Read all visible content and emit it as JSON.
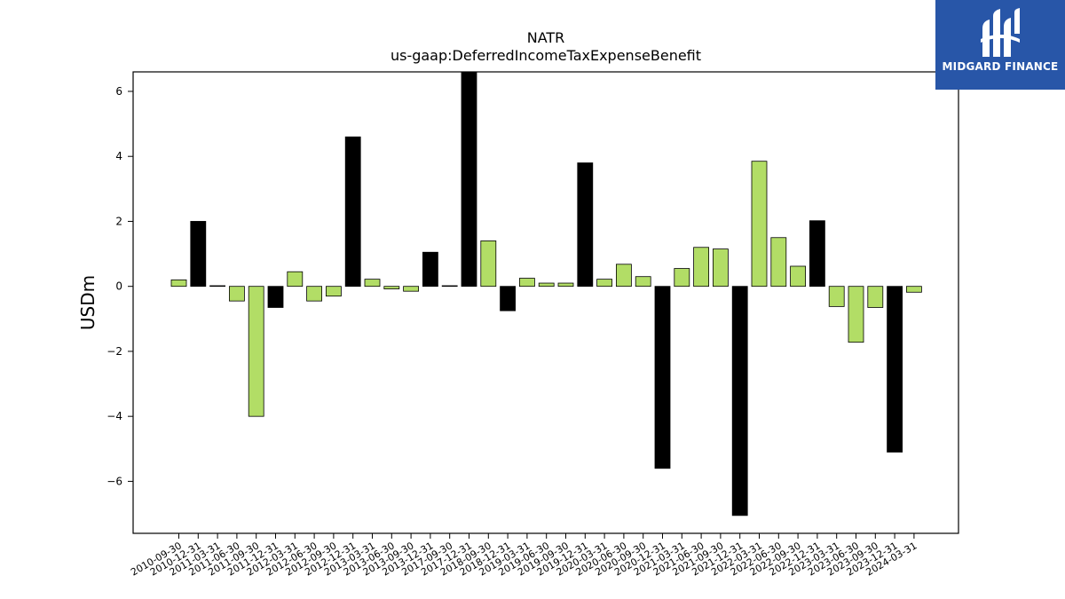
{
  "chart_data": {
    "type": "bar",
    "title": "NATR",
    "subtitle": "us-gaap:DeferredIncomeTaxExpenseBenefit",
    "xlabel": "",
    "ylabel": "USDm",
    "ylim": [
      -7.6,
      6.6
    ],
    "yticks": [
      -6,
      -4,
      -2,
      0,
      2,
      4,
      6
    ],
    "ytick_labels": [
      "−6",
      "−4",
      "−2",
      "0",
      "2",
      "4",
      "6"
    ],
    "grid": false,
    "categories": [
      "2010-09-30",
      "2010-12-31",
      "2011-03-31",
      "2011-06-30",
      "2011-09-30",
      "2011-12-31",
      "2012-03-31",
      "2012-06-30",
      "2012-09-30",
      "2012-12-31",
      "2013-03-31",
      "2013-06-30",
      "2013-09-30",
      "2013-12-31",
      "2017-09-30",
      "2017-12-31",
      "2018-09-30",
      "2018-12-31",
      "2019-03-31",
      "2019-06-30",
      "2019-09-30",
      "2019-12-31",
      "2020-03-31",
      "2020-06-30",
      "2020-09-30",
      "2020-12-31",
      "2021-03-31",
      "2021-06-30",
      "2021-09-30",
      "2021-12-31",
      "2022-03-31",
      "2022-06-30",
      "2022-09-30",
      "2022-12-31",
      "2023-03-31",
      "2023-06-30",
      "2023-09-30",
      "2023-12-31",
      "2024-03-31"
    ],
    "values": [
      0.2,
      2.0,
      0.02,
      -0.45,
      -4.0,
      -0.65,
      0.45,
      -0.45,
      -0.3,
      4.6,
      0.22,
      -0.08,
      -0.15,
      1.05,
      0.02,
      6.6,
      1.4,
      -0.75,
      0.25,
      0.1,
      0.1,
      3.8,
      0.22,
      0.68,
      0.3,
      -5.6,
      0.55,
      1.2,
      1.15,
      -7.05,
      3.85,
      1.5,
      0.62,
      2.02,
      -0.62,
      -1.72,
      -0.65,
      -5.1,
      -0.18
    ],
    "fourth_quarter": [
      false,
      true,
      true,
      false,
      false,
      true,
      false,
      false,
      false,
      true,
      false,
      false,
      false,
      true,
      false,
      true,
      false,
      true,
      false,
      false,
      false,
      true,
      false,
      false,
      false,
      true,
      false,
      false,
      false,
      true,
      false,
      false,
      false,
      true,
      false,
      false,
      false,
      true,
      false
    ],
    "colors": {
      "quarter": "#b2dd66",
      "fourth_quarter": "#000000",
      "edge": "#000000"
    }
  },
  "brand": {
    "name": "MIDGARD FINANCE",
    "bg_color": "#2856a8"
  }
}
